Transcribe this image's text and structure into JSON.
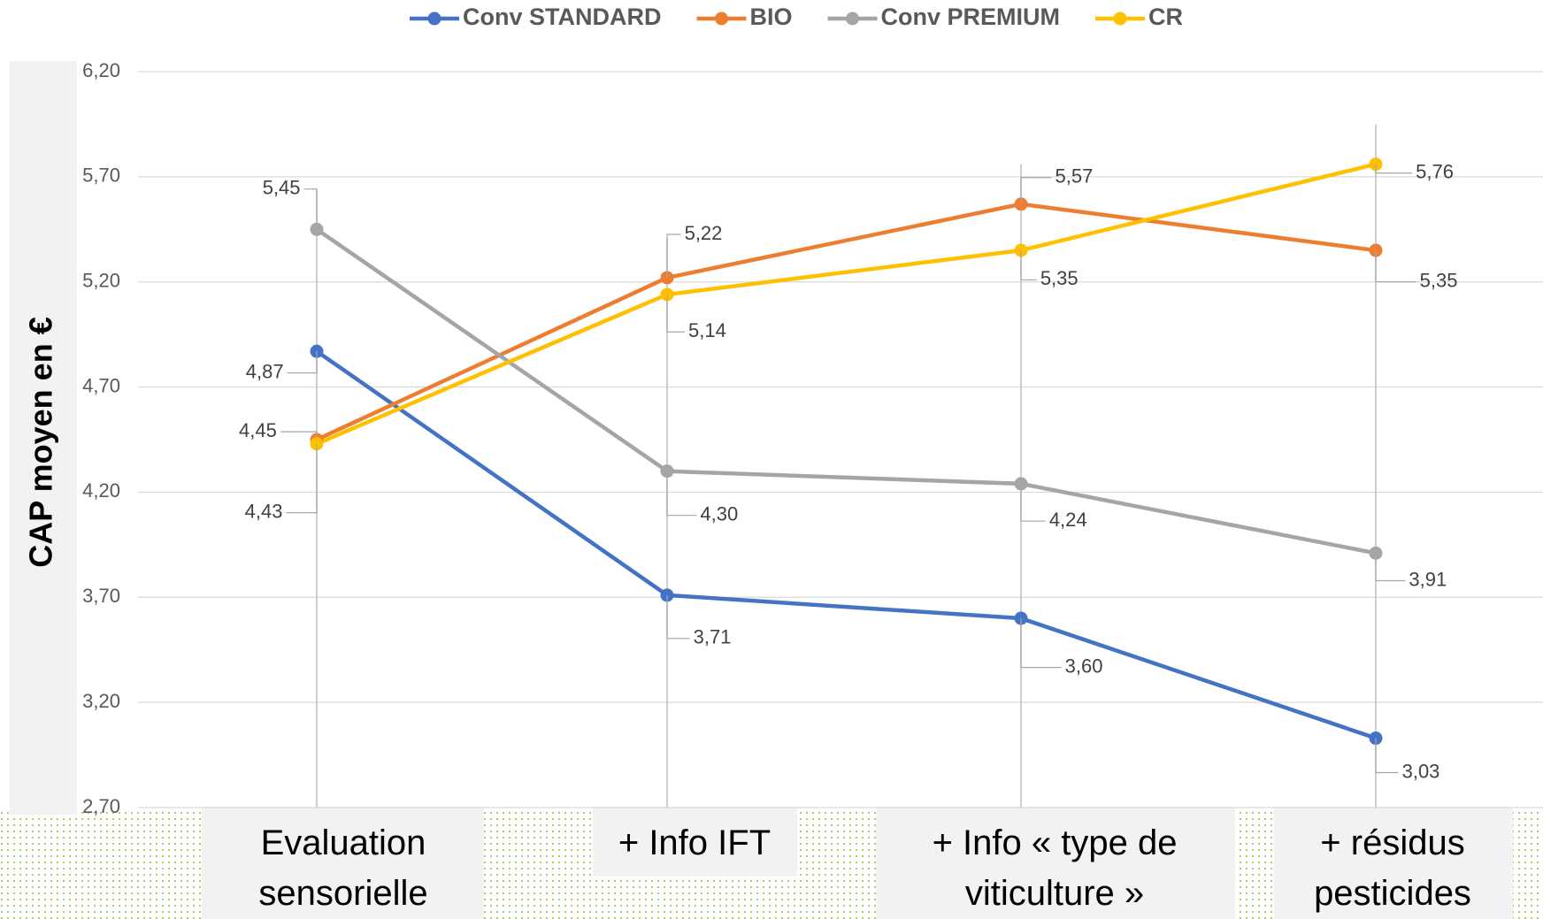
{
  "chart_data": {
    "type": "line",
    "ylabel": "CAP moyen en €",
    "categories": [
      "Evaluation sensorielle",
      "+ Info IFT",
      "+ Info « type de viticulture »",
      "+ résidus pesticides"
    ],
    "series": [
      {
        "name": "Conv STANDARD",
        "color": "#4472c4",
        "values": [
          4.87,
          3.71,
          3.6,
          3.03
        ],
        "value_labels": [
          "4,87",
          "3,71",
          "3,60",
          "3,03"
        ]
      },
      {
        "name": "BIO",
        "color": "#ed7d31",
        "values": [
          4.45,
          5.22,
          5.57,
          5.35
        ],
        "value_labels": [
          "4,45",
          "5,22",
          "5,57",
          "5,35"
        ]
      },
      {
        "name": "Conv PREMIUM",
        "color": "#a5a5a5",
        "values": [
          5.45,
          4.3,
          4.24,
          3.91
        ],
        "value_labels": [
          "5,45",
          "4,30",
          "4,24",
          "3,91"
        ]
      },
      {
        "name": "CR",
        "color": "#ffc000",
        "values": [
          4.43,
          5.14,
          5.35,
          5.76
        ],
        "value_labels": [
          "4,43",
          "5,14",
          "5,35",
          "5,76"
        ]
      }
    ],
    "ylim": [
      2.7,
      6.2
    ],
    "yticks": [
      {
        "value": 2.7,
        "label": "2,70"
      },
      {
        "value": 3.2,
        "label": "3,20"
      },
      {
        "value": 3.7,
        "label": "3,70"
      },
      {
        "value": 4.2,
        "label": "4,20"
      },
      {
        "value": 4.7,
        "label": "4,70"
      },
      {
        "value": 5.2,
        "label": "5,20"
      },
      {
        "value": 5.7,
        "label": "5,70"
      },
      {
        "value": 6.2,
        "label": "6,20"
      }
    ],
    "grid": true,
    "legend": "top"
  }
}
